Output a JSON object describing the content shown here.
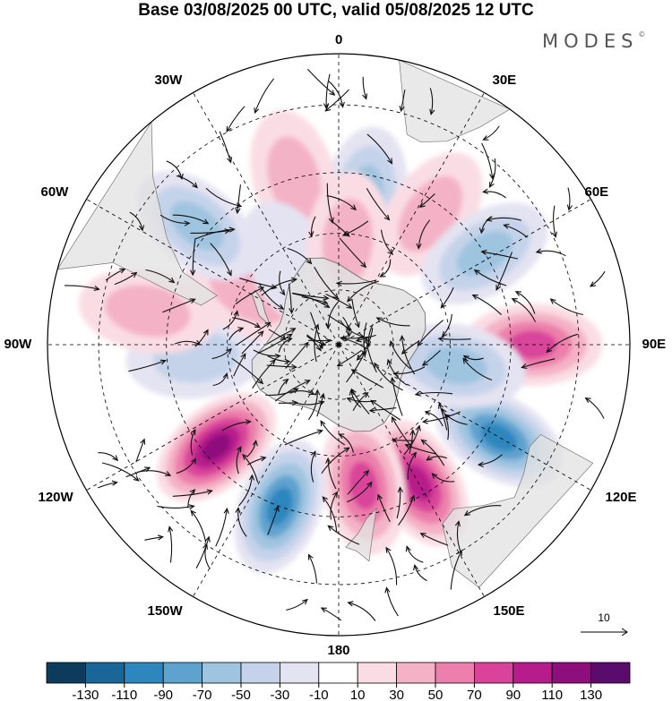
{
  "title": "Base 03/08/2025 00 UTC, valid 05/08/2025 12 UTC",
  "brand": "MODES",
  "brand_mark": "©",
  "map": {
    "projection": "south-polar-stereographic",
    "longitude_labels": [
      "0",
      "30E",
      "60E",
      "90E",
      "120E",
      "150E",
      "180",
      "150W",
      "120W",
      "90W",
      "60W",
      "30W"
    ],
    "field": "wind anomaly",
    "vector_reference": {
      "value": "10"
    },
    "anomaly_centers": [
      {
        "lon": 10,
        "lat": -50,
        "value": -70
      },
      {
        "lon": -15,
        "lat": -45,
        "value": 50
      },
      {
        "lon": 35,
        "lat": -48,
        "value": 50
      },
      {
        "lon": 58,
        "lat": -45,
        "value": -60
      },
      {
        "lon": 90,
        "lat": -40,
        "value": 90
      },
      {
        "lon": 120,
        "lat": -42,
        "value": -110
      },
      {
        "lon": 100,
        "lat": -58,
        "value": -70
      },
      {
        "lon": 150,
        "lat": -48,
        "value": 110
      },
      {
        "lon": 170,
        "lat": -52,
        "value": 80
      },
      {
        "lon": -160,
        "lat": -45,
        "value": -100
      },
      {
        "lon": -130,
        "lat": -48,
        "value": 130
      },
      {
        "lon": -95,
        "lat": -52,
        "value": -50
      },
      {
        "lon": -60,
        "lat": -62,
        "value": 50
      },
      {
        "lon": -50,
        "lat": -42,
        "value": -60
      },
      {
        "lon": -80,
        "lat": -40,
        "value": 40
      },
      {
        "lon": -30,
        "lat": -65,
        "value": -30
      },
      {
        "lon": 5,
        "lat": -62,
        "value": 40
      }
    ]
  },
  "colorbar": {
    "levels": [
      "-130",
      "-110",
      "-90",
      "-70",
      "-50",
      "-30",
      "-10",
      "10",
      "30",
      "50",
      "70",
      "90",
      "110",
      "130"
    ],
    "colors": [
      "#0c3b5e",
      "#19669a",
      "#2e86bf",
      "#5ea3cf",
      "#9fc4e0",
      "#c5d3ea",
      "#e4e3f2",
      "#ffffff",
      "#fadde4",
      "#f4b2c6",
      "#ec7fab",
      "#d9449a",
      "#b81b8b",
      "#8e0e7e",
      "#5a0b6e"
    ]
  }
}
